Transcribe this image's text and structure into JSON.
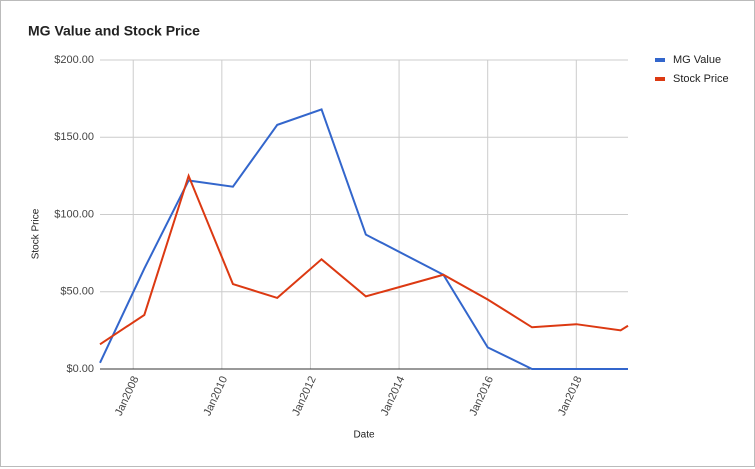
{
  "chart_data": {
    "type": "line",
    "title": "MG Value and Stock Price",
    "x": [
      "2007-04",
      "2008-04",
      "2009-04",
      "2010-04",
      "2011-04",
      "2012-04",
      "2013-04",
      "2015-01",
      "2016-01",
      "2017-01",
      "2018-01",
      "2019-01",
      "2019-03"
    ],
    "series": [
      {
        "name": "MG Value",
        "color": "#3366cc",
        "values": [
          4,
          65,
          122,
          118,
          158,
          168,
          87,
          61,
          14,
          0,
          0,
          0,
          0
        ]
      },
      {
        "name": "Stock Price",
        "color": "#dc3912",
        "values": [
          16,
          35,
          125,
          55,
          46,
          71,
          47,
          61,
          45,
          27,
          29,
          25,
          28
        ]
      }
    ],
    "xlabel": "Date",
    "ylabel": "Stock Price",
    "xlim": [
      "2007-04",
      "2019-03"
    ],
    "xticks": [
      {
        "value": "2008-01",
        "label": "Jan2008"
      },
      {
        "value": "2010-01",
        "label": "Jan2010"
      },
      {
        "value": "2012-01",
        "label": "Jan2012"
      },
      {
        "value": "2014-01",
        "label": "Jan2014"
      },
      {
        "value": "2016-01",
        "label": "Jan2016"
      },
      {
        "value": "2018-01",
        "label": "Jan2018"
      }
    ],
    "ylim": [
      0,
      200
    ],
    "yticks": [
      {
        "value": 0,
        "label": "$0.00"
      },
      {
        "value": 50,
        "label": "$50.00"
      },
      {
        "value": 100,
        "label": "$100.00"
      },
      {
        "value": 150,
        "label": "$150.00"
      },
      {
        "value": 200,
        "label": "$200.00"
      }
    ],
    "grid": true,
    "legend": "right"
  }
}
